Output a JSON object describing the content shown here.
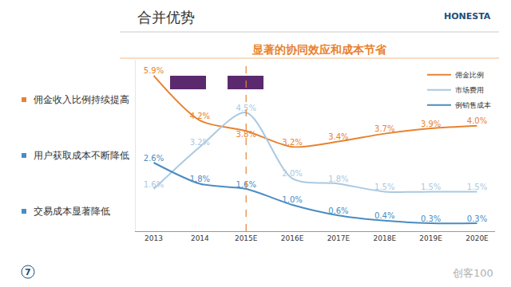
{
  "chart_data": {
    "type": "line",
    "title": "合并优势",
    "subtitle": "显著的协同效应和成本节省",
    "annotations": [
      "佣金收入比例持续提高",
      "用户获取成本不断降低",
      "交易成本显著降低"
    ],
    "logo": "HONESTA",
    "page_number": "7",
    "watermark": "创客100",
    "categories": [
      "2013",
      "2014",
      "2015E",
      "2016E",
      "2017E",
      "2018E",
      "2019E",
      "2020E"
    ],
    "series": [
      {
        "name": "佣金比例",
        "color": "#e8822f",
        "values": [
          5.9,
          4.2,
          3.8,
          3.2,
          3.4,
          3.7,
          3.9,
          4.0
        ],
        "value_labels": [
          "5.9%",
          "4.2%",
          "3.8%",
          "3.2%",
          "3.4%",
          "3.7%",
          "3.9%",
          "4.0%"
        ]
      },
      {
        "name": "市场费用",
        "color": "#a9c9e2",
        "values": [
          1.6,
          3.2,
          4.5,
          2.0,
          1.8,
          1.5,
          1.5,
          1.5
        ],
        "value_labels": [
          "1.6%",
          "3.2%",
          "4.5%",
          "2.0%",
          "1.8%",
          "1.5%",
          "1.5%",
          "1.5%"
        ]
      },
      {
        "name": "例销售成本",
        "color": "#4a8cc2",
        "values": [
          2.6,
          1.8,
          1.6,
          1.0,
          0.6,
          0.4,
          0.3,
          0.3
        ],
        "value_labels": [
          "2.6%",
          "1.8%",
          "1.6%",
          "1.0%",
          "0.6%",
          "0.4%",
          "0.3%",
          "0.3%"
        ]
      }
    ],
    "ylim": [
      0,
      6.5
    ],
    "grid": false,
    "legend": "top right",
    "data_labels": true,
    "tick_labels": "x",
    "line_style": "solid",
    "marker": "none",
    "vline": {
      "x": "2015E",
      "color": "#e8822f",
      "line_style": "dashed"
    }
  }
}
